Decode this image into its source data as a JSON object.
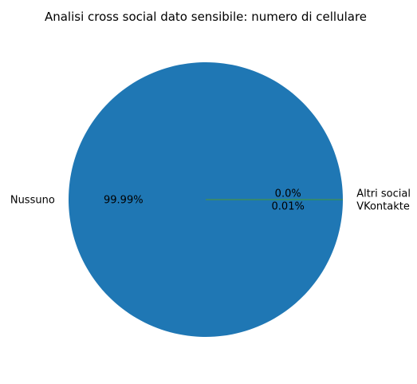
{
  "chart_data": {
    "type": "pie",
    "title": "Analisi cross social dato sensibile: numero di cellulare",
    "slices": [
      {
        "label": "Nussuno",
        "value": 99.99,
        "pct_label": "99.99%",
        "color": "#1f77b4"
      },
      {
        "label": "Altri social",
        "value": 0.0,
        "pct_label": "0.0%",
        "color": "#ff7f0e"
      },
      {
        "label": "VKontakte",
        "value": 0.01,
        "pct_label": "0.01%",
        "color": "#2ca02c"
      }
    ]
  }
}
